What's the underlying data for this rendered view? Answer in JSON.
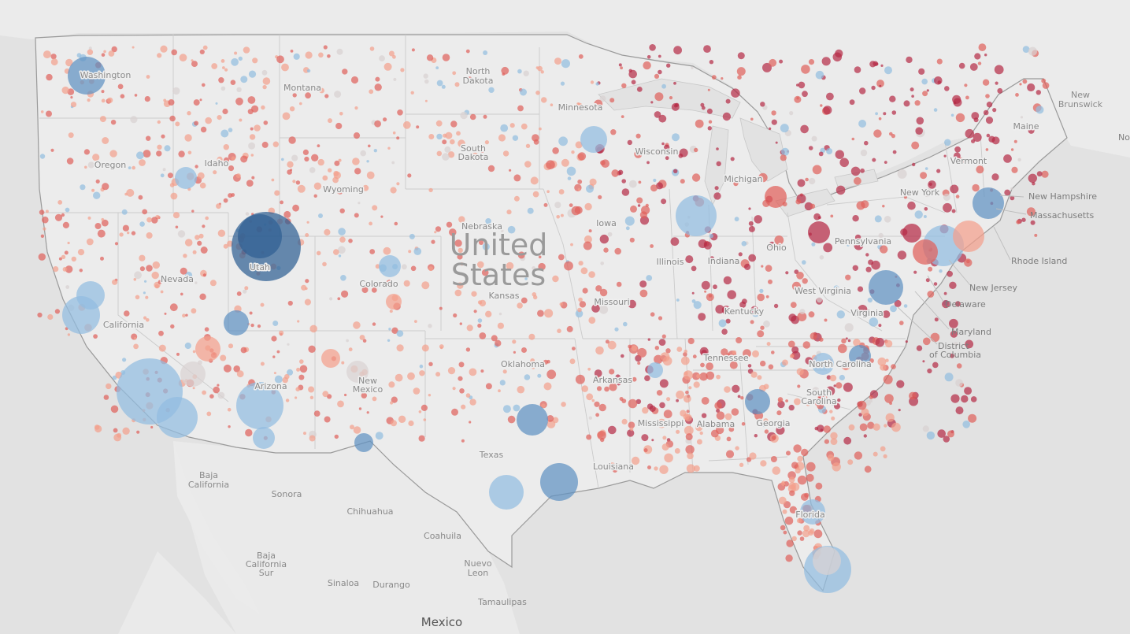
{
  "map": {
    "country_label": "United States",
    "country_label_line1": "United",
    "country_label_line2": "States",
    "neighbor_labels": {
      "mexico": "Mexico",
      "new_brunswick_1": "New",
      "new_brunswick_2": "Brunswick",
      "nova_scotia": "No Sco"
    },
    "state_labels": {
      "washington": "Washington",
      "montana": "Montana",
      "north_dakota_1": "North",
      "north_dakota_2": "Dakota",
      "minnesota": "Minnesota",
      "oregon": "Oregon",
      "idaho": "Idaho",
      "wyoming": "Wyoming",
      "south_dakota_1": "South",
      "south_dakota_2": "Dakota",
      "wisconsin": "Wisconsin",
      "michigan": "Michigan",
      "nebraska": "Nebraska",
      "iowa": "Iowa",
      "nevada": "Nevada",
      "utah": "Utah",
      "colorado": "Colorado",
      "kansas": "Kansas",
      "missouri": "Missouri",
      "illinois": "Illinois",
      "indiana": "Indiana",
      "ohio": "Ohio",
      "pennsylvania": "Pennsylvania",
      "new_york": "New York",
      "vermont": "Vermont",
      "maine": "Maine",
      "california": "California",
      "arizona": "Arizona",
      "new_mexico_1": "New",
      "new_mexico_2": "Mexico",
      "oklahoma": "Oklahoma",
      "arkansas": "Arkansas",
      "tennessee": "Tennessee",
      "kentucky": "Kentucky",
      "west_virginia": "West Virginia",
      "virginia": "Virginia",
      "north_carolina": "North Carolina",
      "south_carolina_1": "South",
      "south_carolina_2": "Carolina",
      "georgia": "Georgia",
      "alabama": "Alabama",
      "mississippi": "Mississippi",
      "louisiana": "Louisiana",
      "texas": "Texas",
      "florida": "Florida"
    },
    "callout_labels": {
      "new_hampshire": "New Hampshire",
      "massachusetts": "Massachusetts",
      "rhode_island": "Rhode Island",
      "new_jersey": "New Jersey",
      "delaware": "Delaware",
      "maryland": "Maryland",
      "dc_1": "District",
      "dc_2": "of Columbia"
    },
    "mexico_region_labels": {
      "baja_california_1": "Baja",
      "baja_california_2": "California",
      "sonora": "Sonora",
      "chihuahua": "Chihuahua",
      "coahuila": "Coahuila",
      "nuevo_leon_1": "Nuevo",
      "nuevo_leon_2": "Leon",
      "baja_california_sur_1": "Baja",
      "baja_california_sur_2": "California",
      "baja_california_sur_3": "Sur",
      "sinaloa": "Sinaloa",
      "durango": "Durango",
      "tamaulipas": "Tamaulipas"
    }
  },
  "colors": {
    "land": "#ececec",
    "water": "#e2e2e2",
    "border": "#c8c8c8",
    "national_border": "#9a9a9a",
    "dark_blue": "#2f5f93",
    "mid_blue": "#5f92c2",
    "light_blue": "#92bde0",
    "neutral": "#d9d2d2",
    "light_red": "#f4a08c",
    "mid_red": "#e0605a",
    "dark_red": "#b52a45"
  }
}
